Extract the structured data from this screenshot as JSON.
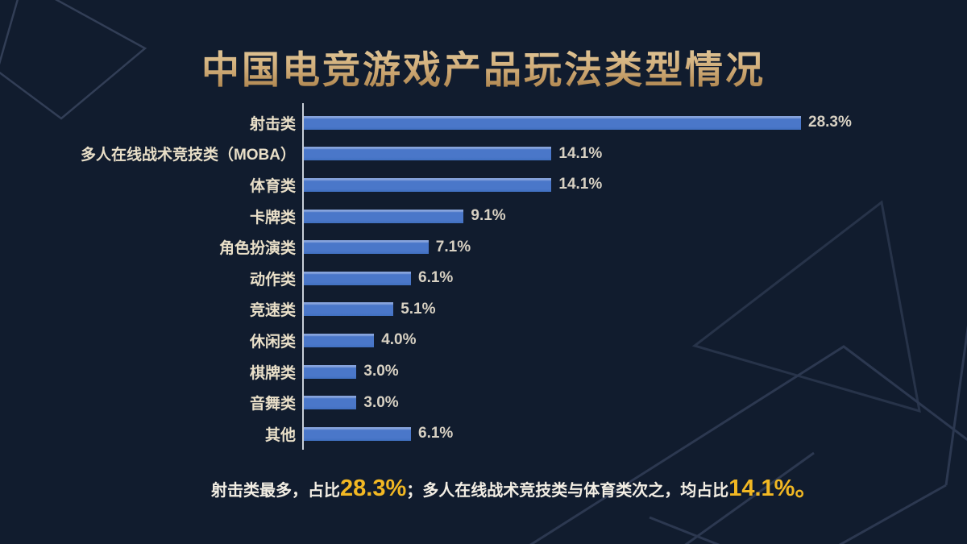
{
  "slide": {
    "title": "中国电竞游戏产品玩法类型情况",
    "caption": {
      "part1": "射击类最多，占比",
      "highlight1": "28.3%",
      "part2": "；多人在线战术竞技类与体育类次之，均占比",
      "highlight2": "14.1%。"
    }
  },
  "chart_data": {
    "type": "bar",
    "orientation": "horizontal",
    "title": "中国电竞游戏产品玩法类型情况",
    "categories": [
      "射击类",
      "多人在线战术竞技类（MOBA）",
      "体育类",
      "卡牌类",
      "角色扮演类",
      "动作类",
      "竞速类",
      "休闲类",
      "棋牌类",
      "音舞类",
      "其他"
    ],
    "values": [
      28.3,
      14.1,
      14.1,
      9.1,
      7.1,
      6.1,
      5.1,
      4.0,
      3.0,
      3.0,
      6.1
    ],
    "value_labels": [
      "28.3%",
      "14.1%",
      "14.1%",
      "9.1%",
      "7.1%",
      "6.1%",
      "5.1%",
      "4.0%",
      "3.0%",
      "3.0%",
      "6.1%"
    ],
    "xlim": [
      0,
      28.3
    ],
    "grid": false,
    "legend": false,
    "bar_color": "#4a77c9",
    "axis_color": "#c9cfd8"
  },
  "colors": {
    "background": "#111c2e",
    "title_gold": "#cfab77",
    "category_label": "#e9dfc8",
    "value_label": "#d8d1c3",
    "caption_text": "#f3eee4",
    "caption_highlight": "#f2b823",
    "decoration_line": "#2e3a52"
  }
}
